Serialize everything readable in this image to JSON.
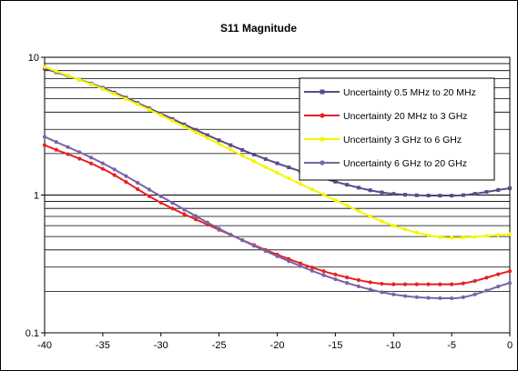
{
  "chart_data": {
    "type": "line",
    "title": "S11 Magnitude",
    "xlabel": "",
    "ylabel": "",
    "xlim": [
      -40,
      0
    ],
    "ylim": [
      0.1,
      10
    ],
    "yscale": "log",
    "grid": true,
    "legend_position": "top-right",
    "x_ticks": [
      "-40",
      "-35",
      "-30",
      "-25",
      "-20",
      "-15",
      "-10",
      "-5",
      "0"
    ],
    "y_ticks": [
      "0.1",
      "1",
      "10"
    ],
    "x": [
      -40,
      -35,
      -30,
      -25,
      -20,
      -15,
      -10,
      -5,
      0
    ],
    "series": [
      {
        "name": "Uncertainty 0.5 MHz to 20 MHz",
        "color": "#5b4a8a",
        "marker": "square",
        "values": [
          8.3,
          6.0,
          3.9,
          2.5,
          1.7,
          1.25,
          1.02,
          0.99,
          1.12
        ]
      },
      {
        "name": "Uncertainty 20 MHz to  3 GHz",
        "color": "#e52222",
        "marker": "circle",
        "values": [
          2.3,
          1.55,
          0.88,
          0.56,
          0.37,
          0.265,
          0.225,
          0.225,
          0.28
        ]
      },
      {
        "name": "Uncertainty 3 GHz to 6 GHz",
        "color": "#f5f500",
        "marker": "circle",
        "values": [
          8.5,
          5.9,
          3.8,
          2.35,
          1.45,
          0.92,
          0.6,
          0.49,
          0.52
        ]
      },
      {
        "name": "Uncertainty 6 GHz to 20 GHz",
        "color": "#7a63a8",
        "marker": "circle",
        "values": [
          2.65,
          1.7,
          0.98,
          0.57,
          0.36,
          0.245,
          0.19,
          0.178,
          0.23
        ]
      }
    ]
  }
}
